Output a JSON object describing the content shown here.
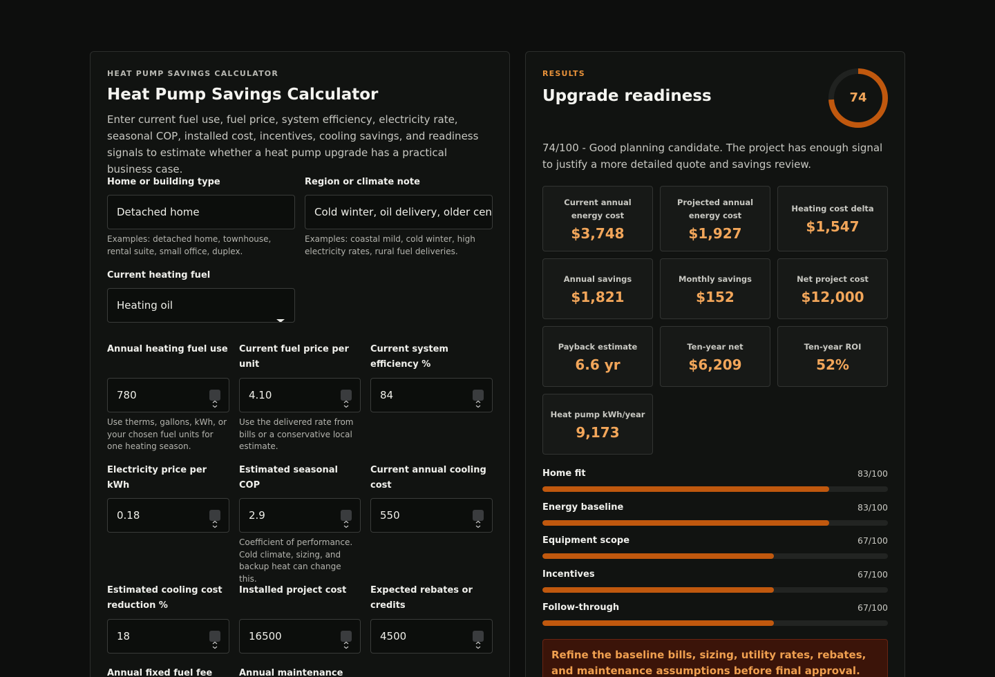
{
  "calculator": {
    "eyebrow": "HEAT PUMP SAVINGS CALCULATOR",
    "title": "Heat Pump Savings Calculator",
    "description": "Enter current fuel use, fuel price, system efficiency, electricity rate, seasonal COP, installed cost, incentives, cooling savings, and readiness signals to estimate whether a heat pump upgrade has a practical business case.",
    "fields": [
      {
        "label": "Home or building type",
        "value": "Detached home",
        "help": "Examples: detached home, townhouse, rental suite, small office, duplex."
      },
      {
        "label": "Region or climate note",
        "value": "Cold winter, oil delivery, older centr",
        "help": "Examples: coastal mild, cold winter, high electricity rates, rural fuel deliveries."
      },
      {
        "label": "Current heating fuel",
        "value": "Heating oil"
      },
      {
        "label": "Annual heating fuel use",
        "value": "780",
        "help": "Use therms, gallons, kWh, or your chosen fuel units for one heating season."
      },
      {
        "label": "Current fuel price per unit",
        "value": "4.10",
        "help": "Use the delivered rate from bills or a conservative local estimate."
      },
      {
        "label": "Current system efficiency %",
        "value": "84"
      },
      {
        "label": "Electricity price per kWh",
        "value": "0.18"
      },
      {
        "label": "Estimated seasonal COP",
        "value": "2.9",
        "help": "Coefficient of performance. Cold climate, sizing, and backup heat can change this."
      },
      {
        "label": "Current annual cooling cost",
        "value": "550"
      },
      {
        "label": "Estimated cooling cost reduction %",
        "value": "18"
      },
      {
        "label": "Installed project cost",
        "value": "16500"
      },
      {
        "label": "Expected rebates or credits",
        "value": "4500"
      },
      {
        "label": "Annual fixed fuel fee"
      },
      {
        "label": "Annual maintenance"
      }
    ]
  },
  "results": {
    "eyebrow": "RESULTS",
    "title": "Upgrade readiness",
    "scale_max": 100,
    "score": 74,
    "summary": "74/100 - Good planning candidate. The project has enough signal to justify a more detailed quote and savings review.",
    "metrics": [
      {
        "label": "Current annual energy cost",
        "value": "$3,748"
      },
      {
        "label": "Projected annual energy cost",
        "value": "$1,927"
      },
      {
        "label": "Heating cost delta",
        "value": "$1,547"
      },
      {
        "label": "Annual savings",
        "value": "$1,821"
      },
      {
        "label": "Monthly savings",
        "value": "$152"
      },
      {
        "label": "Net project cost",
        "value": "$12,000"
      },
      {
        "label": "Payback estimate",
        "value": "6.6 yr"
      },
      {
        "label": "Ten-year net",
        "value": "$6,209"
      },
      {
        "label": "Ten-year ROI",
        "value": "52%"
      },
      {
        "label": "Heat pump kWh/year",
        "value": "9,173"
      }
    ],
    "scores": [
      {
        "name": "Home fit",
        "value": 83,
        "label": "83/100"
      },
      {
        "name": "Energy baseline",
        "value": 83,
        "label": "83/100"
      },
      {
        "name": "Equipment scope",
        "value": 67,
        "label": "67/100"
      },
      {
        "name": "Incentives",
        "value": 67,
        "label": "67/100"
      },
      {
        "name": "Follow-through",
        "value": 67,
        "label": "67/100"
      }
    ],
    "alert": "Refine the baseline bills, sizing, utility rates, rebates, and maintenance assumptions before final approval."
  }
}
